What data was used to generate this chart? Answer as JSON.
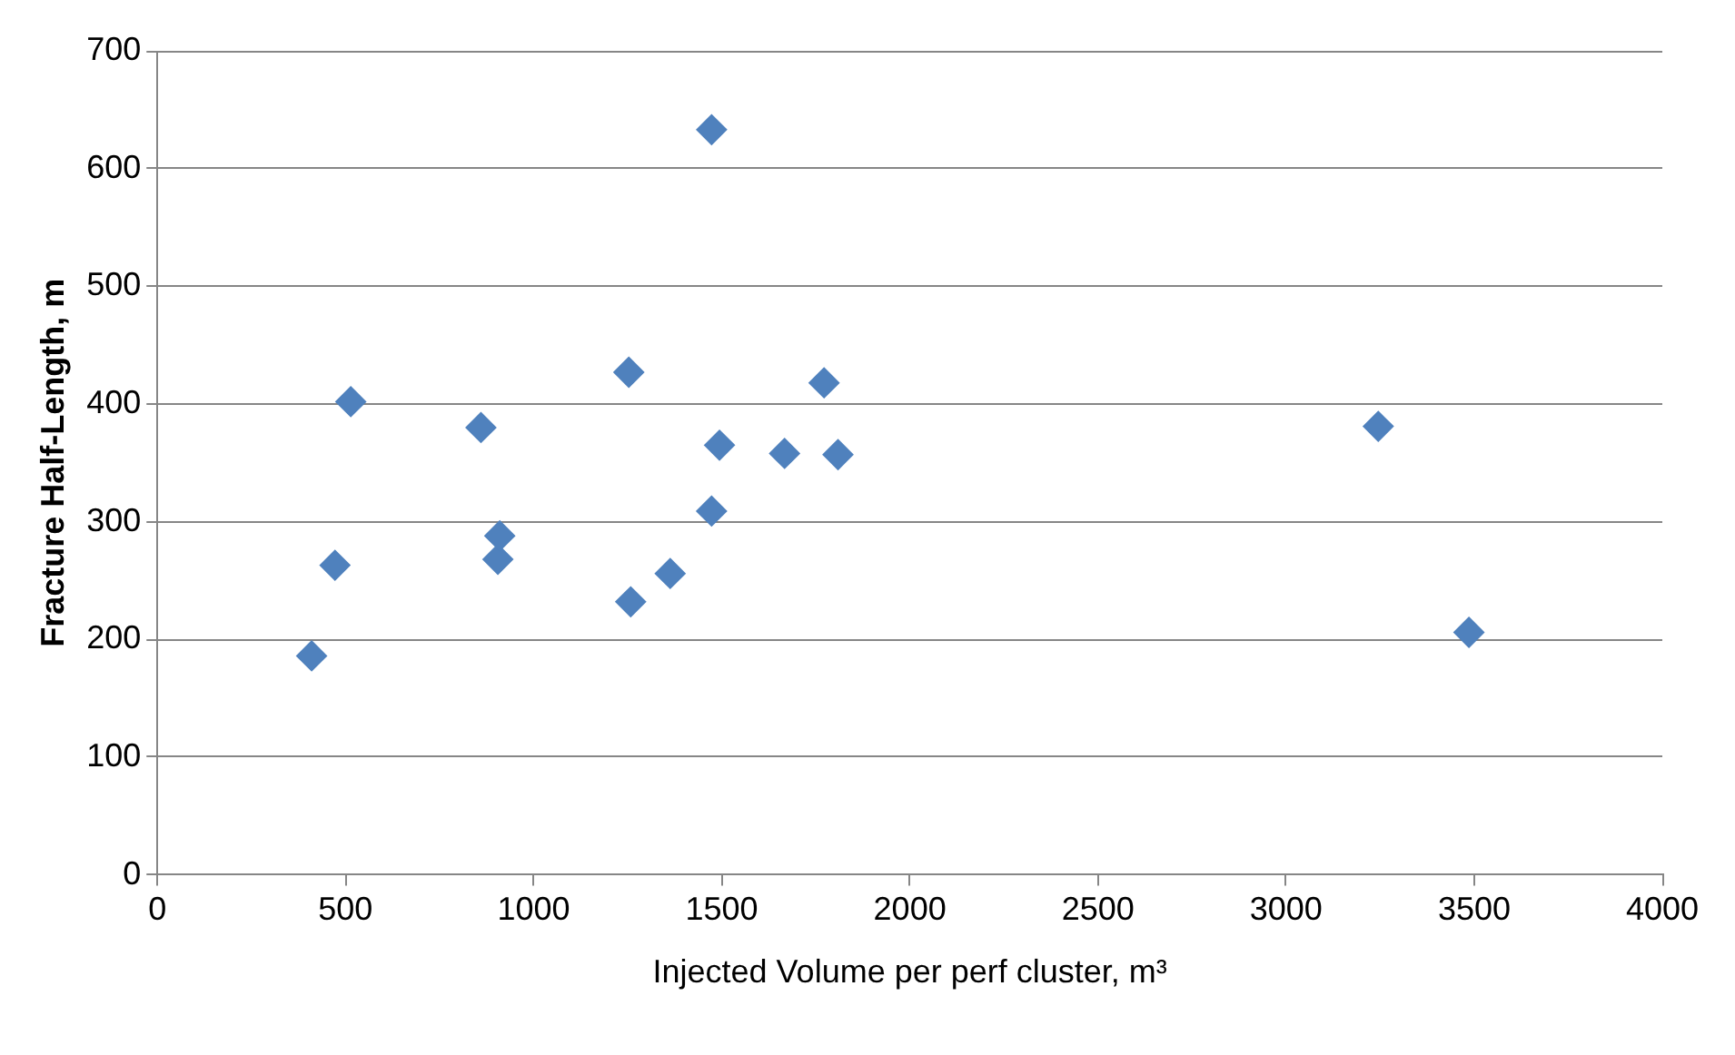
{
  "chart_data": {
    "type": "scatter",
    "xlabel": "Injected Volume per perf cluster, m³",
    "ylabel": "Fracture Half-Length, m",
    "x": [
      410,
      472,
      514,
      860,
      905,
      910,
      1253,
      1258,
      1363,
      1473,
      1473,
      1494,
      1667,
      1772,
      1809,
      3245,
      3486
    ],
    "values": [
      186,
      263,
      402,
      380,
      268,
      288,
      427,
      232,
      256,
      633,
      309,
      365,
      358,
      418,
      357,
      381,
      206
    ],
    "color": "#4f81bd",
    "marker": "diamond",
    "xlim": [
      0,
      4000
    ],
    "xticks": [
      0,
      500,
      1000,
      1500,
      2000,
      2500,
      3000,
      3500,
      4000
    ],
    "ylim": [
      0,
      700
    ],
    "yticks": [
      0,
      100,
      200,
      300,
      400,
      500,
      600,
      700
    ],
    "grid": "y",
    "legend": false
  }
}
